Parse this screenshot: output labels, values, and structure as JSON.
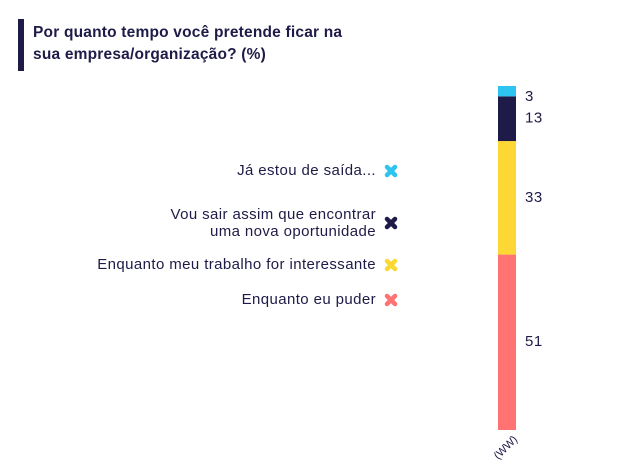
{
  "chart_data": {
    "type": "stacked-bar",
    "title": "Por quanto tempo você pretende ficar na sua empresa/organização? (%)",
    "categories": [
      "(WW)"
    ],
    "series": [
      {
        "name": "Já estou de saída...",
        "color": "#2ec4f1",
        "values": [
          3
        ]
      },
      {
        "name": "Vou sair assim que encontrar uma nova oportunidade",
        "color": "#1e1b48",
        "values": [
          13
        ]
      },
      {
        "name": "Enquanto meu trabalho for interessante",
        "color": "#fdd835",
        "values": [
          33
        ]
      },
      {
        "name": "Enquanto eu puder",
        "color": "#ff7373",
        "values": [
          51
        ]
      }
    ]
  }
}
